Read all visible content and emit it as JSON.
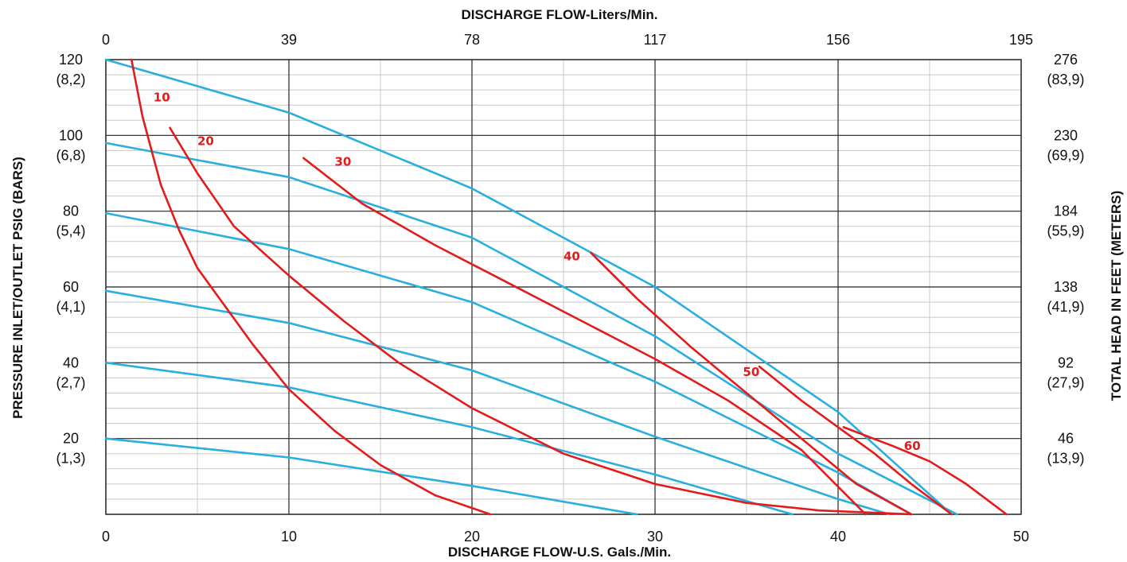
{
  "chart_data": {
    "type": "line",
    "title": "",
    "xlabel_bottom": "DISCHARGE FLOW-U.S. Gals./Min.",
    "xlabel_top": "DISCHARGE FLOW-Liters/Min.",
    "ylabel_left": "PRESSURE INLET/OUTLET PSIG (BARS)",
    "ylabel_right": "TOTAL HEAD IN FEET (METERS)",
    "xlim": [
      0,
      50
    ],
    "ylim": [
      0,
      120
    ],
    "grid": true,
    "x_ticks_bottom": [
      "0",
      "10",
      "20",
      "30",
      "40",
      "50"
    ],
    "x_ticks_top": [
      "0",
      "39",
      "78",
      "117",
      "156",
      "195"
    ],
    "y_ticks_left": [
      {
        "value": 120,
        "psi": "120",
        "bar": "(8,2)"
      },
      {
        "value": 100,
        "psi": "100",
        "bar": "(6,8)"
      },
      {
        "value": 80,
        "psi": "80",
        "bar": "(5,4)"
      },
      {
        "value": 60,
        "psi": "60",
        "bar": "(4,1)"
      },
      {
        "value": 40,
        "psi": "40",
        "bar": "(2,7)"
      },
      {
        "value": 20,
        "psi": "20",
        "bar": "(1,3)"
      }
    ],
    "y_ticks_right": [
      {
        "value": 120,
        "feet": "276",
        "meters": "(83,9)"
      },
      {
        "value": 100,
        "feet": "230",
        "meters": "(69,9)"
      },
      {
        "value": 80,
        "feet": "184",
        "meters": "(55,9)"
      },
      {
        "value": 60,
        "feet": "138",
        "meters": "(41,9)"
      },
      {
        "value": 40,
        "feet": "92",
        "meters": "(27,9)"
      },
      {
        "value": 20,
        "feet": "46",
        "meters": "(13,9)"
      }
    ],
    "colors": {
      "pressure_curves": "#29aee0",
      "air_curves": "#e31b1b",
      "grid": "#222222",
      "minor_grid": "#c8c8c8"
    },
    "series": [
      {
        "group": "pressure",
        "points": [
          [
            0,
            120
          ],
          [
            10,
            106
          ],
          [
            20,
            86
          ],
          [
            30,
            60
          ],
          [
            40,
            27
          ],
          [
            46.2,
            0
          ]
        ]
      },
      {
        "group": "pressure",
        "points": [
          [
            0,
            98
          ],
          [
            10,
            89
          ],
          [
            20,
            73
          ],
          [
            30,
            47
          ],
          [
            40,
            16
          ],
          [
            46.5,
            0
          ]
        ]
      },
      {
        "group": "pressure",
        "points": [
          [
            0,
            79.5
          ],
          [
            10,
            70
          ],
          [
            20,
            56
          ],
          [
            30,
            35
          ],
          [
            40,
            11
          ],
          [
            44,
            0
          ]
        ]
      },
      {
        "group": "pressure",
        "points": [
          [
            0,
            59
          ],
          [
            10,
            50.5
          ],
          [
            20,
            38
          ],
          [
            30,
            20.5
          ],
          [
            40,
            4
          ],
          [
            42.8,
            0
          ]
        ]
      },
      {
        "group": "pressure",
        "points": [
          [
            0,
            40
          ],
          [
            10,
            33.5
          ],
          [
            20,
            23
          ],
          [
            30,
            10.5
          ],
          [
            37.5,
            0
          ]
        ]
      },
      {
        "group": "pressure",
        "points": [
          [
            0,
            20
          ],
          [
            10,
            15
          ],
          [
            20,
            7.5
          ],
          [
            29,
            0
          ]
        ]
      },
      {
        "group": "air",
        "label": "10",
        "label_at": [
          2.6,
          109
        ],
        "points": [
          [
            1.4,
            120
          ],
          [
            2,
            105
          ],
          [
            3,
            87
          ],
          [
            4,
            75
          ],
          [
            5,
            65
          ],
          [
            6.5,
            55
          ],
          [
            8,
            45
          ],
          [
            10,
            33
          ],
          [
            12.5,
            22
          ],
          [
            15,
            13
          ],
          [
            18,
            5
          ],
          [
            21,
            0
          ]
        ]
      },
      {
        "group": "air",
        "label": "20",
        "label_at": [
          5.0,
          97.5
        ],
        "points": [
          [
            3.5,
            102
          ],
          [
            5,
            90
          ],
          [
            7,
            76
          ],
          [
            10,
            63
          ],
          [
            13,
            51
          ],
          [
            16,
            40
          ],
          [
            20,
            28
          ],
          [
            25,
            16
          ],
          [
            30,
            8
          ],
          [
            35,
            3
          ],
          [
            39,
            1
          ],
          [
            44,
            0
          ]
        ]
      },
      {
        "group": "air",
        "label": "30",
        "label_at": [
          12.5,
          92
        ],
        "points": [
          [
            10.8,
            94
          ],
          [
            14,
            82
          ],
          [
            18,
            71
          ],
          [
            22,
            61
          ],
          [
            26,
            51
          ],
          [
            30,
            41
          ],
          [
            34,
            30
          ],
          [
            38,
            17
          ],
          [
            41.5,
            0
          ]
        ]
      },
      {
        "group": "air",
        "label": "40",
        "label_at": [
          25.0,
          67
        ],
        "points": [
          [
            26.5,
            69
          ],
          [
            29,
            57
          ],
          [
            32,
            44
          ],
          [
            35,
            32
          ],
          [
            38,
            20
          ],
          [
            41,
            8
          ],
          [
            44,
            0
          ]
        ]
      },
      {
        "group": "air",
        "label": "50",
        "label_at": [
          34.8,
          36.5
        ],
        "points": [
          [
            35.7,
            39
          ],
          [
            38,
            30
          ],
          [
            40,
            23
          ],
          [
            42,
            16
          ],
          [
            44,
            8
          ],
          [
            46.2,
            0
          ]
        ]
      },
      {
        "group": "air",
        "label": "60",
        "label_at": [
          43.6,
          17
        ],
        "points": [
          [
            40.3,
            23
          ],
          [
            43,
            18
          ],
          [
            45,
            14
          ],
          [
            47,
            8
          ],
          [
            49.2,
            0
          ]
        ]
      }
    ]
  }
}
